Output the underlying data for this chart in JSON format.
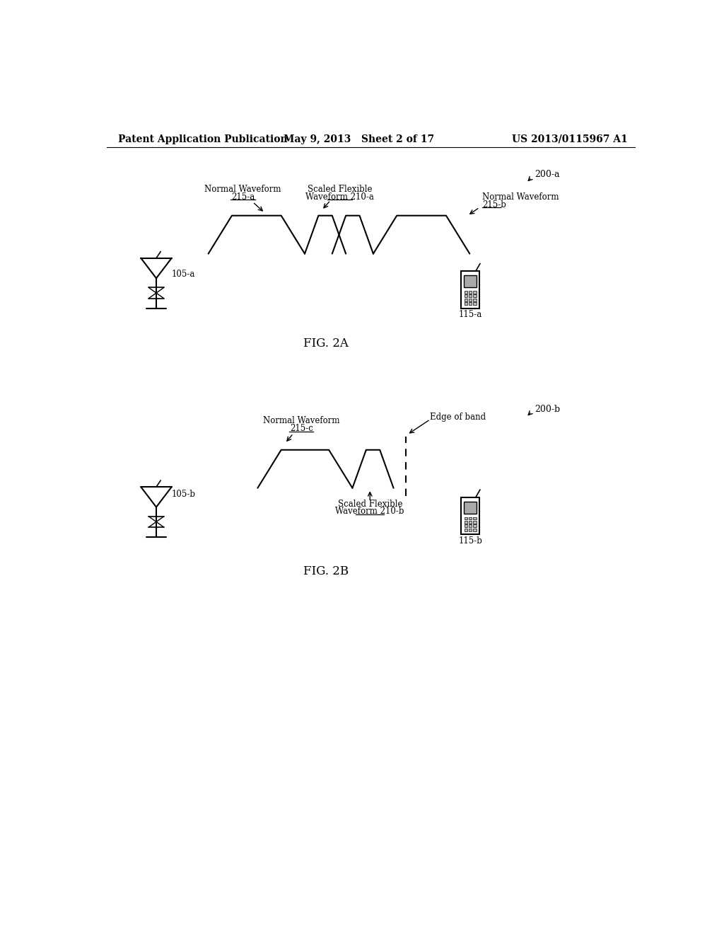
{
  "header_left": "Patent Application Publication",
  "header_mid": "May 9, 2013   Sheet 2 of 17",
  "header_right": "US 2013/0115967 A1",
  "fig2a_label": "FIG. 2A",
  "fig2b_label": "FIG. 2B",
  "ref_200a": "200-a",
  "ref_200b": "200-b",
  "ref_105a": "105-a",
  "ref_105b": "105-b",
  "ref_115a": "115-a",
  "ref_115b": "115-b",
  "label_normal_waveform": "Normal Waveform",
  "label_215a": "215-a",
  "label_scaled_flexible": "Scaled Flexible",
  "label_waveform_210a": "Waveform 210-a",
  "label_215b": "215-b",
  "label_215c": "215-c",
  "label_edge_of_band": "Edge of band",
  "label_waveform_210b": "Waveform 210-b",
  "background_color": "#ffffff",
  "line_color": "#000000",
  "text_color": "#000000",
  "font_size_header": 10,
  "font_size_label": 8.5,
  "font_size_fig": 12
}
